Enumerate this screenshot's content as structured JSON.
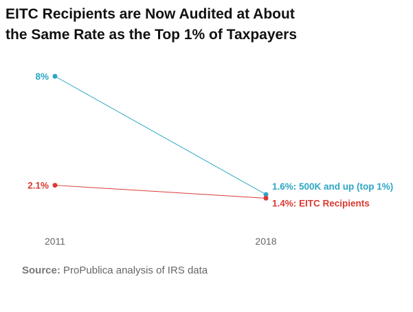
{
  "title_lines": [
    "EITC Recipients are Now Audited at About",
    "the Same Rate as the Top 1% of Taxpayers"
  ],
  "source": {
    "label": "Source:",
    "text": "ProPublica analysis of IRS data"
  },
  "colors": {
    "top1": "#2ca6c4",
    "eitc": "#d93a32"
  },
  "chart_data": {
    "type": "line",
    "categories": [
      "2011",
      "2018"
    ],
    "ylim": [
      0,
      9
    ],
    "series": [
      {
        "name": "500K and up (top 1%)",
        "key": "top1",
        "values": [
          8,
          1.6
        ],
        "start_label": "8%",
        "end_label": "1.6%: 500K and up (top 1%)"
      },
      {
        "name": "EITC Recipients",
        "key": "eitc",
        "values": [
          2.1,
          1.4
        ],
        "start_label": "2.1%",
        "end_label": "1.4%: EITC Recipients"
      }
    ]
  }
}
